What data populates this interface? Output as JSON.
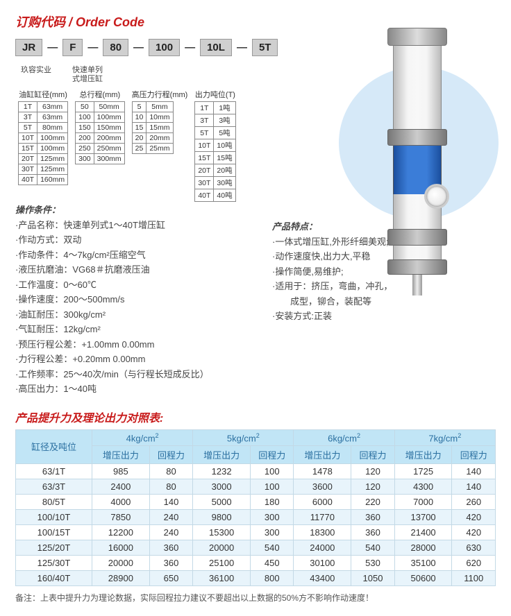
{
  "title_main": "订购代码 / Order Code",
  "order_codes": [
    "JR",
    "F",
    "80",
    "100",
    "10L",
    "5T"
  ],
  "order_labels": [
    "玖容实业",
    "快速单列\n式增压缸",
    "",
    "",
    "",
    ""
  ],
  "tbl_bore": {
    "title": "油缸缸径(mm)",
    "rows": [
      [
        "1T",
        "63mm"
      ],
      [
        "3T",
        "63mm"
      ],
      [
        "5T",
        "80mm"
      ],
      [
        "10T",
        "100mm"
      ],
      [
        "15T",
        "100mm"
      ],
      [
        "20T",
        "125mm"
      ],
      [
        "30T",
        "125mm"
      ],
      [
        "40T",
        "160mm"
      ]
    ]
  },
  "tbl_total": {
    "title": "总行程(mm)",
    "rows": [
      [
        "50",
        "50mm"
      ],
      [
        "100",
        "100mm"
      ],
      [
        "150",
        "150mm"
      ],
      [
        "200",
        "200mm"
      ],
      [
        "250",
        "250mm"
      ],
      [
        "300",
        "300mm"
      ]
    ]
  },
  "tbl_hp": {
    "title": "高压力行程(mm)",
    "rows": [
      [
        "5",
        "5mm"
      ],
      [
        "10",
        "10mm"
      ],
      [
        "15",
        "15mm"
      ],
      [
        "20",
        "20mm"
      ],
      [
        "25",
        "25mm"
      ]
    ]
  },
  "tbl_out": {
    "title": "出力吨位(T)",
    "rows": [
      [
        "1T",
        "1吨"
      ],
      [
        "3T",
        "3吨"
      ],
      [
        "5T",
        "5吨"
      ],
      [
        "10T",
        "10吨"
      ],
      [
        "15T",
        "15吨"
      ],
      [
        "20T",
        "20吨"
      ],
      [
        "30T",
        "30吨"
      ],
      [
        "40T",
        "40吨"
      ]
    ]
  },
  "sec_cond_title": "操作条件：",
  "conds": [
    "·产品名称：快速单列式1～40T增压缸",
    "·作动方式：双动",
    "·作动条件：4～7kg/cm²压缩空气",
    "·液压抗磨油：VG68＃抗磨液压油",
    "·工作温度：0～60℃",
    "·操作速度：200～500mm/s",
    "·油缸耐压：300kg/cm²",
    "·气缸耐压：12kg/cm²",
    "·预压行程公差：+1.00mm  0.00mm",
    "·力行程公差：+0.20mm  0.00mm",
    "·工作频率：25～40次/min（与行程长短成反比）",
    "·高压出力：1～40吨"
  ],
  "sec_feat_title": "产品特点：",
  "feats": [
    "·一体式增压缸,外形纤细美观;",
    "·动作速度快,出力大,平稳",
    "·操作简便,易维护;",
    "·适用于：挤压，弯曲，冲孔，",
    "　　成型，铆合，装配等",
    "·安装方式:正装"
  ],
  "sec_force_title": "产品提升力及理论出力对照表:",
  "force_headers_main": [
    "缸径及吨位",
    "4kg/cm²",
    "5kg/cm²",
    "6kg/cm²",
    "7kg/cm²"
  ],
  "force_headers_sub": [
    "增压出力",
    "回程力",
    "增压出力",
    "回程力",
    "增压出力",
    "回程力",
    "增压出力",
    "回程力"
  ],
  "force_rows": [
    [
      "63/1T",
      "985",
      "80",
      "1232",
      "100",
      "1478",
      "120",
      "1725",
      "140"
    ],
    [
      "63/3T",
      "2400",
      "80",
      "3000",
      "100",
      "3600",
      "120",
      "4300",
      "140"
    ],
    [
      "80/5T",
      "4000",
      "140",
      "5000",
      "180",
      "6000",
      "220",
      "7000",
      "260"
    ],
    [
      "100/10T",
      "7850",
      "240",
      "9800",
      "300",
      "11770",
      "360",
      "13700",
      "420"
    ],
    [
      "100/15T",
      "12200",
      "240",
      "15300",
      "300",
      "18300",
      "360",
      "21400",
      "420"
    ],
    [
      "125/20T",
      "16000",
      "360",
      "20000",
      "540",
      "24000",
      "540",
      "28000",
      "630"
    ],
    [
      "125/30T",
      "20000",
      "360",
      "25100",
      "450",
      "30100",
      "530",
      "35100",
      "620"
    ],
    [
      "160/40T",
      "28900",
      "650",
      "36100",
      "800",
      "43400",
      "1050",
      "50600",
      "1100"
    ]
  ],
  "note": "备注：上表中提升力为理论数据，实际回程拉力建议不要超出以上数据的50%方不影响作动速度！",
  "colors": {
    "red": "#c81b1b",
    "table_header_bg": "#c1e5f6",
    "table_alt_bg": "#e8f4fb",
    "ellipse_bg": "#d6e9f8"
  }
}
